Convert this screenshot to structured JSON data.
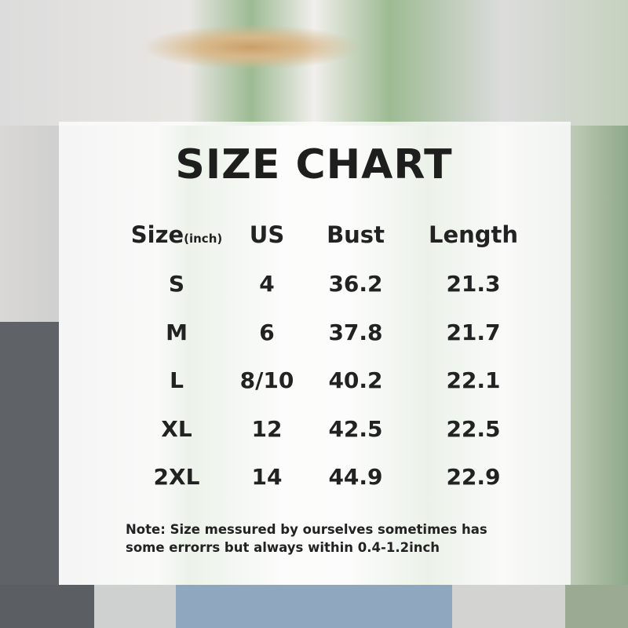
{
  "title": "SIZE CHART",
  "table": {
    "headers": {
      "size": "Size",
      "size_unit": "(inch)",
      "us": "US",
      "bust": "Bust",
      "length": "Length"
    },
    "rows": [
      {
        "size": "S",
        "us": "4",
        "bust": "36.2",
        "length": "21.3"
      },
      {
        "size": "M",
        "us": "6",
        "bust": "37.8",
        "length": "21.7"
      },
      {
        "size": "L",
        "us": "8/10",
        "bust": "40.2",
        "length": "22.1"
      },
      {
        "size": "XL",
        "us": "12",
        "bust": "42.5",
        "length": "22.5"
      },
      {
        "size": "2XL",
        "us": "14",
        "bust": "44.9",
        "length": "22.9"
      }
    ]
  },
  "note": {
    "line1": "Note:  Size messured by ourselves sometimes has",
    "line2": "some errorrs but always within 0.4-1.2inch"
  }
}
